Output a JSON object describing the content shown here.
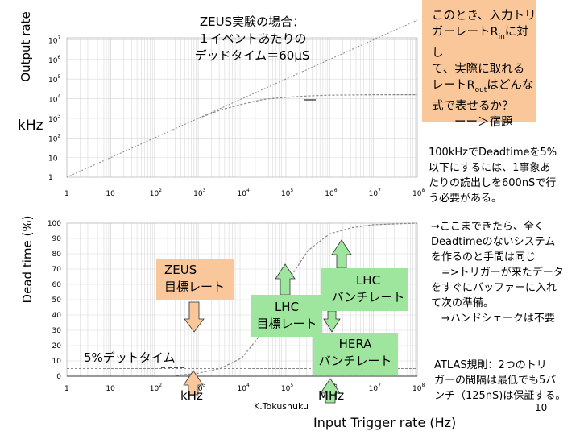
{
  "upper_plot": {
    "y_axis_title": "Output rate",
    "unit_label": "kHz",
    "y_ticks": [
      {
        "base": "1",
        "exp": ""
      },
      {
        "base": "10",
        "exp": ""
      },
      {
        "base": "10",
        "exp": "2"
      },
      {
        "base": "10",
        "exp": "3"
      },
      {
        "base": "10",
        "exp": "4"
      },
      {
        "base": "10",
        "exp": "5"
      },
      {
        "base": "10",
        "exp": "6"
      },
      {
        "base": "10",
        "exp": "7"
      }
    ],
    "x_ticks": [
      {
        "base": "1",
        "exp": ""
      },
      {
        "base": "10",
        "exp": ""
      },
      {
        "base": "10",
        "exp": "2"
      },
      {
        "base": "10",
        "exp": "3"
      },
      {
        "base": "10",
        "exp": "4"
      },
      {
        "base": "10",
        "exp": "5"
      },
      {
        "base": "10",
        "exp": "6"
      },
      {
        "base": "10",
        "exp": "7"
      },
      {
        "base": "10",
        "exp": "8"
      }
    ],
    "x_range": [
      0,
      8
    ],
    "y_range": [
      0,
      7
    ],
    "diagonal_curve": [
      [
        0,
        0
      ],
      [
        8,
        8
      ]
    ],
    "saturation_curve": [
      [
        3,
        3
      ],
      [
        3.5,
        3.42
      ],
      [
        4,
        3.72
      ],
      [
        4.5,
        3.97
      ],
      [
        5,
        4.07
      ],
      [
        5.5,
        4.14
      ],
      [
        6,
        4.18
      ],
      [
        7,
        4.2
      ],
      [
        8,
        4.2
      ]
    ]
  },
  "lower_plot": {
    "y_axis_title": "Dead time (%)",
    "y_ticks": [
      "0",
      "10",
      "20",
      "30",
      "40",
      "50",
      "60",
      "70",
      "80",
      "90",
      "100"
    ],
    "x_ticks": [
      {
        "base": "1",
        "exp": ""
      },
      {
        "base": "10",
        "exp": ""
      },
      {
        "base": "10",
        "exp": "2"
      },
      {
        "base": "10",
        "exp": "3"
      },
      {
        "base": "10",
        "exp": "4"
      },
      {
        "base": "10",
        "exp": "5"
      },
      {
        "base": "10",
        "exp": "6"
      },
      {
        "base": "10",
        "exp": "7"
      },
      {
        "base": "10",
        "exp": "8"
      }
    ],
    "x_range": [
      0,
      8
    ],
    "y_range": [
      0,
      100
    ],
    "deadtime_curve": [
      [
        2.5,
        0.5
      ],
      [
        3,
        2
      ],
      [
        3.5,
        5
      ],
      [
        4,
        12
      ],
      [
        4.5,
        30
      ],
      [
        5,
        60
      ],
      [
        5.5,
        82
      ],
      [
        6,
        93
      ],
      [
        6.5,
        97
      ],
      [
        7,
        99
      ],
      [
        8,
        100
      ]
    ],
    "five_percent_level": 5
  },
  "texts": {
    "zeus_note": "ZEUS実験の場合：\n１イベントあたりの\nデッドタイム＝60μS",
    "question_box": {
      "l1": "このとき、入力トリ",
      "l2_pre": "ガーレートR",
      "l2_sub": "in",
      "l2_post": "に対し",
      "l3": "て、実際に取れる",
      "l4_pre": "レートR",
      "l4_sub": "out",
      "l4_post": "はどんな",
      "l5": "式で表せるか？",
      "l6": "ーー＞宿題"
    },
    "readout_note": "100kHzでDeadtimeを5%\n以下にするには、1事象あ\nたりの読出しを600nSで行\nう必要がある。",
    "nodeadtime_note": "→ここまできたら、全く\nDeadtimeのないシステム\nを作るのと手間は同じ\n　=>トリガーが来たデータ\nをすぐにバッファーに入れ\nて次の準備。\n　→ハンドシェークは不要",
    "atlas_note": "ATLAS規則：2つのトリ\nガーの間隔は最低でも5バ\nンチ（125nS)は保証する。",
    "zeus_target": "ZEUS\n目標レート",
    "lhc_target": "LHC\n目標レート",
    "lhc_bunch": "LHC\nバンチレート",
    "hera_bunch": "HERA\nバンチレート",
    "five_percent_label": "5%デットタイム",
    "khz_label": "kHz",
    "mhz_label": "MHz",
    "author": "K.Tokushuku",
    "page_number": "10",
    "x_axis_title": "Input Trigger rate (Hz)"
  },
  "colors": {
    "orange": "#f9c79a",
    "green": "#9ee59e",
    "grid": "#d8d8d8",
    "curve": "#888888"
  }
}
